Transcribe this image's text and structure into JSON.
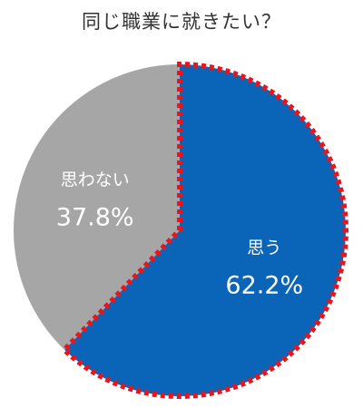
{
  "chart_data": {
    "type": "pie",
    "title": "同じ職業に就きたい？",
    "slices": [
      {
        "label": "思う",
        "value": 62.2,
        "value_label": "62.2%",
        "color": "#0a64b8",
        "highlighted": true,
        "highlight_color": "#e8161c"
      },
      {
        "label": "思わない",
        "value": 37.8,
        "value_label": "37.8%",
        "color": "#a6a6a6",
        "highlighted": false
      }
    ],
    "start_angle": "12 o'clock",
    "direction": "clockwise",
    "label_color": "#ffffff"
  }
}
